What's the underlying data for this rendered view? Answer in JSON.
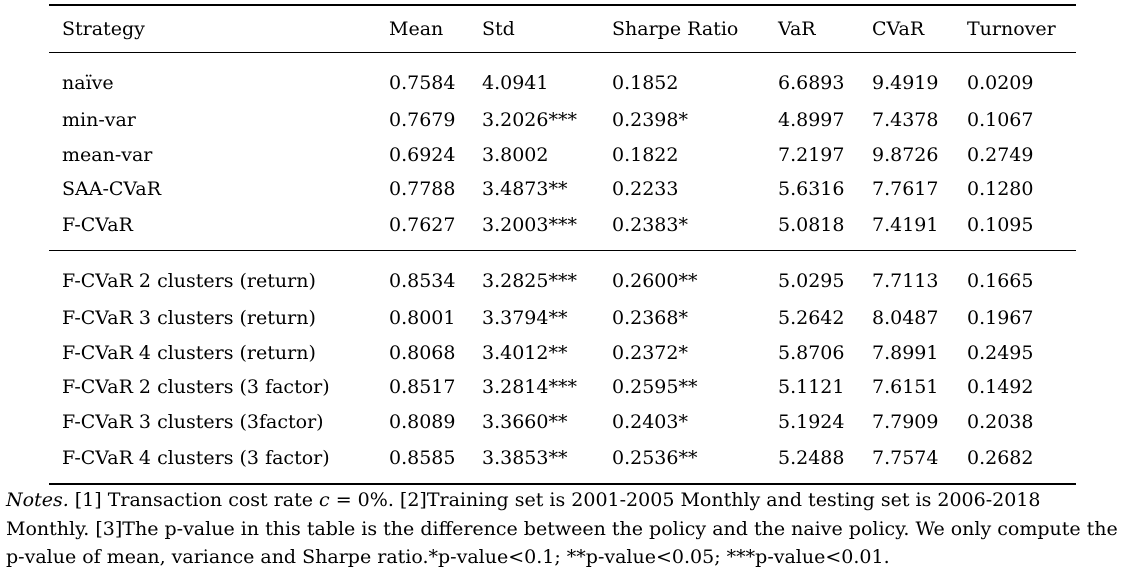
{
  "table": {
    "headers": [
      "Strategy",
      "Mean",
      "Std",
      "Sharpe Ratio",
      "VaR",
      "CVaR",
      "Turnover"
    ],
    "groups": [
      {
        "rows": [
          [
            "naïve",
            "0.7584",
            "4.0941",
            "0.1852",
            "6.6893",
            "9.4919",
            "0.0209"
          ],
          [
            "min-var",
            "0.7679",
            "3.2026***",
            "0.2398*",
            "4.8997",
            "7.4378",
            "0.1067"
          ],
          [
            "mean-var",
            "0.6924",
            "3.8002",
            "0.1822",
            "7.2197",
            "9.8726",
            "0.2749"
          ],
          [
            "SAA-CVaR",
            "0.7788",
            "3.4873**",
            "0.2233",
            "5.6316",
            "7.7617",
            "0.1280"
          ],
          [
            "F-CVaR",
            "0.7627",
            "3.2003***",
            "0.2383*",
            "5.0818",
            "7.4191",
            "0.1095"
          ]
        ]
      },
      {
        "rows": [
          [
            "F-CVaR 2 clusters (return)",
            "0.8534",
            "3.2825***",
            "0.2600**",
            "5.0295",
            "7.7113",
            "0.1665"
          ],
          [
            "F-CVaR 3 clusters (return)",
            "0.8001",
            "3.3794**",
            "0.2368*",
            "5.2642",
            "8.0487",
            "0.1967"
          ],
          [
            "F-CVaR 4 clusters (return)",
            "0.8068",
            "3.4012**",
            "0.2372*",
            "5.8706",
            "7.8991",
            "0.2495"
          ],
          [
            "F-CVaR 2 clusters (3 factor)",
            "0.8517",
            "3.2814***",
            "0.2595**",
            "5.1121",
            "7.6151",
            "0.1492"
          ],
          [
            "F-CVaR 3 clusters (3factor)",
            "0.8089",
            "3.3660**",
            "0.2403*",
            "5.1924",
            "7.7909",
            "0.2038"
          ],
          [
            "F-CVaR 4 clusters (3 factor)",
            "0.8585",
            "3.3853**",
            "0.2536**",
            "5.2488",
            "7.7574",
            "0.2682"
          ]
        ]
      }
    ]
  },
  "notes": {
    "label": "Notes.",
    "item1_pre": " [1] Transaction cost rate ",
    "item1_var": "c",
    "item1_post": " = 0%.",
    "item2": " [2]Training set is 2001-2005 Monthly and testing set is 2006-2018 Monthly.",
    "item3": " [3]The p-value in this table is the difference between the policy and the naive policy. We only compute the p-value of mean, variance and Sharpe ratio.*p-value<0.1; **p-value<0.05; ***p-value<0.01."
  }
}
